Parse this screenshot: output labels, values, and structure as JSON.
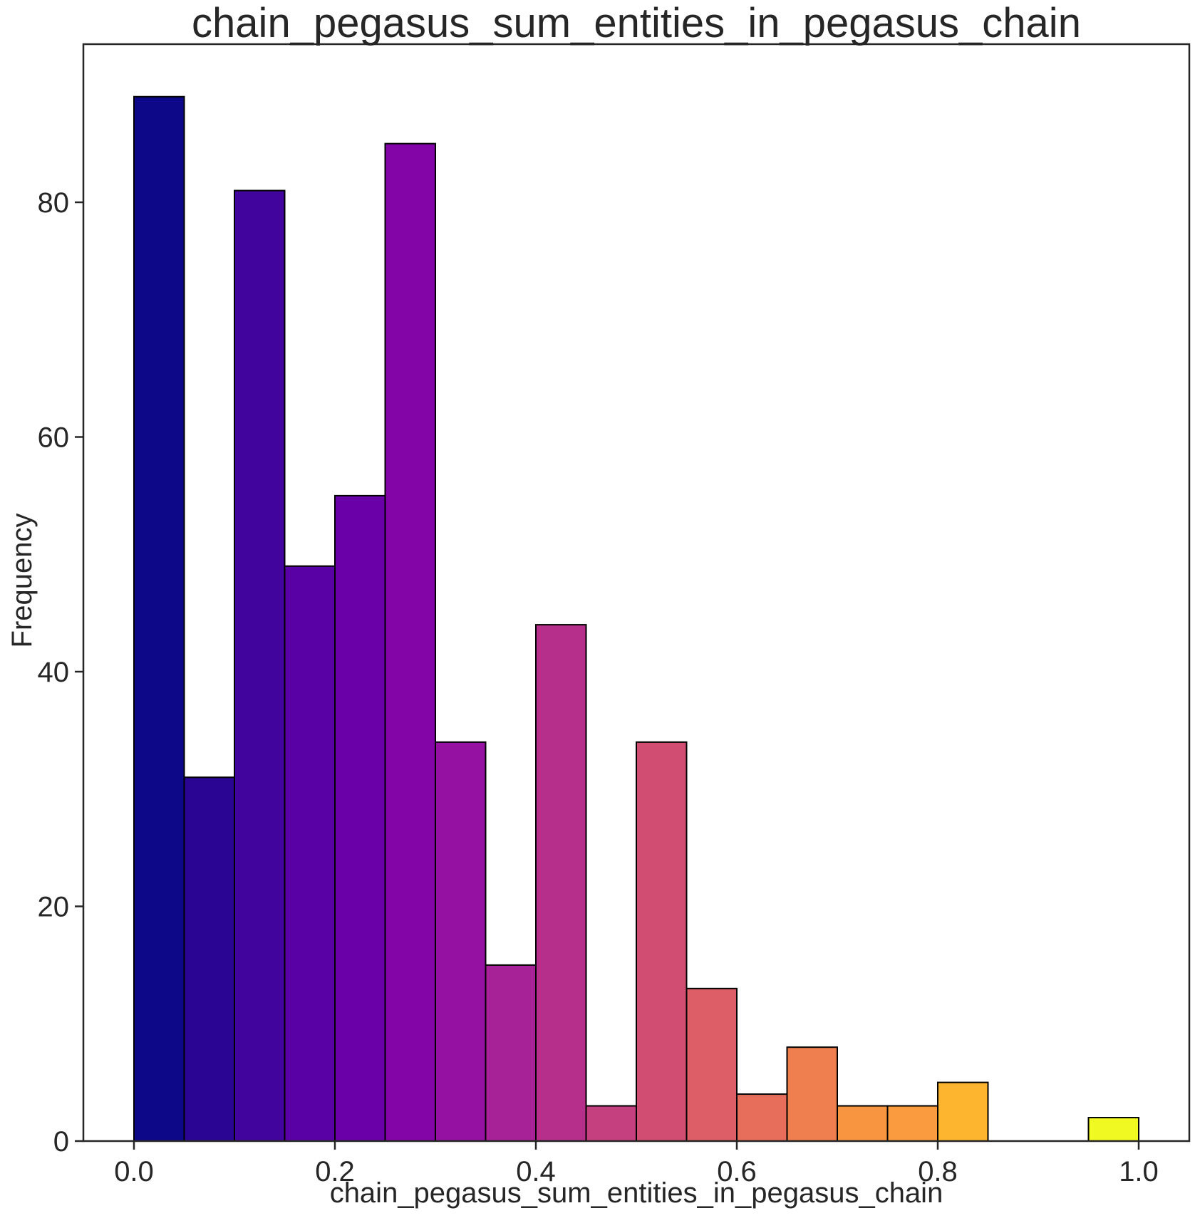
{
  "chart_data": {
    "type": "bar",
    "title": "chain_pegasus_sum_entities_in_pegasus_chain",
    "xlabel": "chain_pegasus_sum_entities_in_pegasus_chain",
    "ylabel": "Frequency",
    "xlim": [
      -0.05,
      1.05
    ],
    "ylim": [
      0,
      93
    ],
    "bin_width": 0.05,
    "bins": [
      {
        "x0": 0.0,
        "value": 89,
        "color": "#0d0887"
      },
      {
        "x0": 0.05,
        "value": 31,
        "color": "#2a0593"
      },
      {
        "x0": 0.1,
        "value": 81,
        "color": "#41049d"
      },
      {
        "x0": 0.15,
        "value": 49,
        "color": "#5a01a5"
      },
      {
        "x0": 0.2,
        "value": 55,
        "color": "#6a00a8"
      },
      {
        "x0": 0.25,
        "value": 85,
        "color": "#8405a7"
      },
      {
        "x0": 0.3,
        "value": 34,
        "color": "#9511a1"
      },
      {
        "x0": 0.35,
        "value": 15,
        "color": "#a72197"
      },
      {
        "x0": 0.4,
        "value": 44,
        "color": "#b6308b"
      },
      {
        "x0": 0.45,
        "value": 3,
        "color": "#c5407e"
      },
      {
        "x0": 0.5,
        "value": 34,
        "color": "#d14e72"
      },
      {
        "x0": 0.55,
        "value": 13,
        "color": "#dd5e66"
      },
      {
        "x0": 0.6,
        "value": 4,
        "color": "#e76e5b"
      },
      {
        "x0": 0.65,
        "value": 8,
        "color": "#f07f4f"
      },
      {
        "x0": 0.7,
        "value": 3,
        "color": "#f89540"
      },
      {
        "x0": 0.75,
        "value": 3,
        "color": "#f99b3e"
      },
      {
        "x0": 0.8,
        "value": 5,
        "color": "#fdb42f"
      },
      {
        "x0": 0.85,
        "value": 0,
        "color": "#fbd524"
      },
      {
        "x0": 0.9,
        "value": 0,
        "color": "#f5e626"
      },
      {
        "x0": 0.95,
        "value": 2,
        "color": "#f0f921"
      }
    ],
    "x_ticks": [
      {
        "value": 0.0,
        "label": "0.0"
      },
      {
        "value": 0.2,
        "label": "0.2"
      },
      {
        "value": 0.4,
        "label": "0.4"
      },
      {
        "value": 0.6,
        "label": "0.6"
      },
      {
        "value": 0.8,
        "label": "0.8"
      },
      {
        "value": 1.0,
        "label": "1.0"
      }
    ],
    "y_ticks": [
      {
        "value": 0,
        "label": "0"
      },
      {
        "value": 20,
        "label": "20"
      },
      {
        "value": 40,
        "label": "40"
      },
      {
        "value": 60,
        "label": "60"
      },
      {
        "value": 80,
        "label": "80"
      }
    ],
    "grid": false,
    "legend": "none"
  }
}
